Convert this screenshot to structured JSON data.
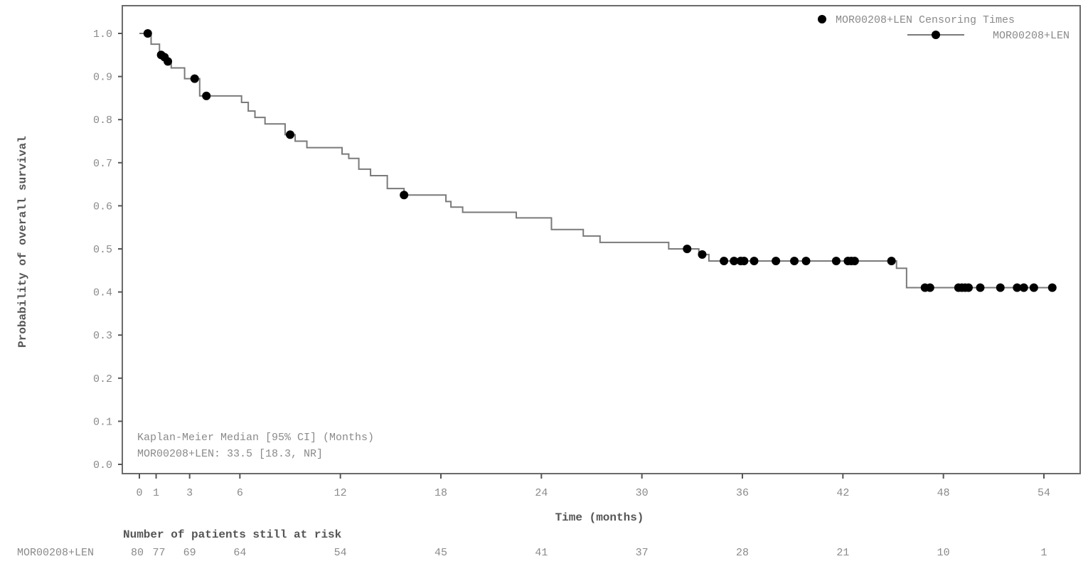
{
  "chart_data": {
    "type": "line",
    "subtype": "kaplan-meier-step",
    "title": "",
    "xlabel": "Time (months)",
    "ylabel": "Probability of overall survival",
    "xlim": [
      0,
      55
    ],
    "ylim": [
      0.0,
      1.0
    ],
    "x_ticks": [
      0,
      1,
      3,
      6,
      12,
      18,
      24,
      30,
      36,
      42,
      48,
      54
    ],
    "y_ticks": [
      "0.0",
      "0.1",
      "0.2",
      "0.3",
      "0.4",
      "0.5",
      "0.6",
      "0.7",
      "0.8",
      "0.9",
      "1.0"
    ],
    "grid": false,
    "legend_position": "top-right",
    "legend": [
      {
        "label": "MOR00208+LEN Censoring Times",
        "marker": "filled-circle"
      },
      {
        "label": "MOR00208+LEN",
        "marker": "line-with-circle"
      }
    ],
    "series": [
      {
        "name": "MOR00208+LEN",
        "color": "#7a7a7a",
        "steps": [
          [
            0,
            1.0
          ],
          [
            0.7,
            0.975
          ],
          [
            1.2,
            0.95
          ],
          [
            1.6,
            0.935
          ],
          [
            1.9,
            0.92
          ],
          [
            2.7,
            0.895
          ],
          [
            3.6,
            0.855
          ],
          [
            6.1,
            0.84
          ],
          [
            6.5,
            0.82
          ],
          [
            6.9,
            0.805
          ],
          [
            7.5,
            0.79
          ],
          [
            8.7,
            0.765
          ],
          [
            9.3,
            0.75
          ],
          [
            10.0,
            0.735
          ],
          [
            12.1,
            0.72
          ],
          [
            12.5,
            0.71
          ],
          [
            13.1,
            0.685
          ],
          [
            13.8,
            0.67
          ],
          [
            14.8,
            0.64
          ],
          [
            15.8,
            0.625
          ],
          [
            18.3,
            0.61
          ],
          [
            18.6,
            0.597
          ],
          [
            19.3,
            0.585
          ],
          [
            22.5,
            0.572
          ],
          [
            24.6,
            0.545
          ],
          [
            26.5,
            0.53
          ],
          [
            27.5,
            0.515
          ],
          [
            31.6,
            0.5
          ],
          [
            33.4,
            0.487
          ],
          [
            34.0,
            0.472
          ],
          [
            45.2,
            0.455
          ],
          [
            45.8,
            0.41
          ],
          [
            54.6,
            0.41
          ]
        ],
        "censored": [
          [
            0.5,
            1.0
          ],
          [
            1.3,
            0.95
          ],
          [
            1.5,
            0.945
          ],
          [
            1.7,
            0.935
          ],
          [
            3.3,
            0.895
          ],
          [
            4.0,
            0.855
          ],
          [
            9.0,
            0.765
          ],
          [
            15.8,
            0.625
          ],
          [
            32.7,
            0.5
          ],
          [
            33.6,
            0.487
          ],
          [
            34.9,
            0.472
          ],
          [
            35.5,
            0.472
          ],
          [
            35.9,
            0.472
          ],
          [
            36.1,
            0.472
          ],
          [
            36.7,
            0.472
          ],
          [
            38.0,
            0.472
          ],
          [
            39.1,
            0.472
          ],
          [
            39.8,
            0.472
          ],
          [
            41.6,
            0.472
          ],
          [
            42.3,
            0.472
          ],
          [
            42.5,
            0.472
          ],
          [
            42.7,
            0.472
          ],
          [
            44.9,
            0.472
          ],
          [
            46.9,
            0.41
          ],
          [
            47.2,
            0.41
          ],
          [
            48.9,
            0.41
          ],
          [
            49.1,
            0.41
          ],
          [
            49.3,
            0.41
          ],
          [
            49.5,
            0.41
          ],
          [
            50.2,
            0.41
          ],
          [
            51.4,
            0.41
          ],
          [
            52.4,
            0.41
          ],
          [
            52.8,
            0.41
          ],
          [
            53.4,
            0.41
          ],
          [
            54.5,
            0.41
          ]
        ]
      }
    ],
    "annotations": [
      "Kaplan-Meier Median [95% CI] (Months)",
      "MOR00208+LEN: 33.5 [18.3, NR]"
    ],
    "risk_table": {
      "title": "Number of patients still at risk",
      "row_label": "MOR00208+LEN",
      "times": [
        0,
        1,
        3,
        6,
        12,
        18,
        24,
        30,
        36,
        42,
        48,
        54
      ],
      "values": [
        "80",
        "77",
        "69",
        "64",
        "54",
        "45",
        "41",
        "37",
        "28",
        "21",
        "10",
        "1"
      ]
    }
  },
  "legend": {
    "censor_label": "MOR00208+LEN Censoring Times",
    "series_label": "MOR00208+LEN"
  },
  "annotation": {
    "line1": "Kaplan-Meier Median [95% CI] (Months)",
    "line2": "MOR00208+LEN: 33.5 [18.3, NR]"
  },
  "axes": {
    "xlabel": "Time (months)",
    "ylabel": "Probability of overall survival"
  },
  "risk": {
    "title": "Number of patients still at risk",
    "row_label": "MOR00208+LEN"
  }
}
